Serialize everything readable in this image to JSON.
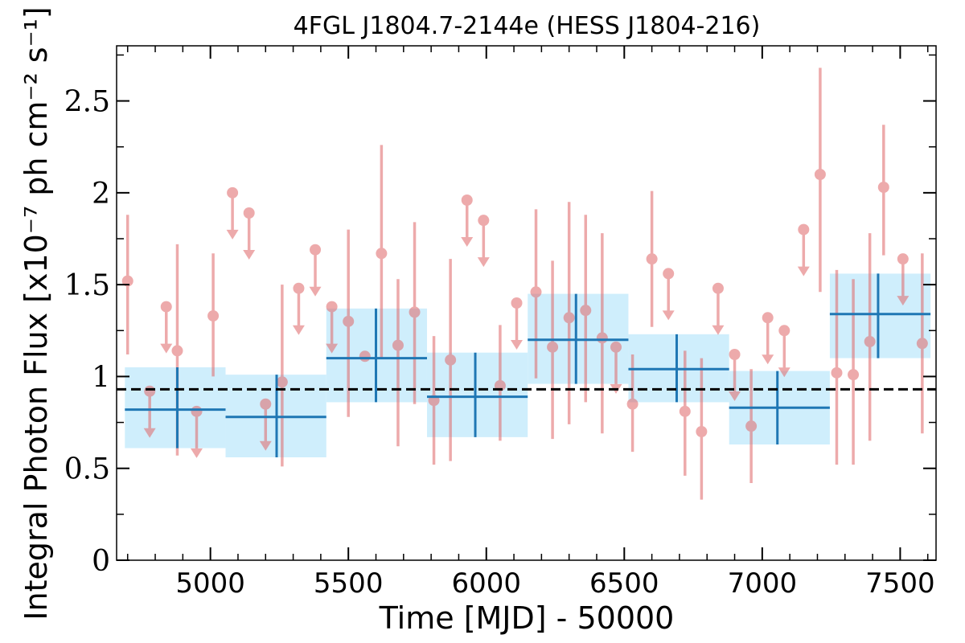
{
  "chart_data": {
    "type": "scatter",
    "title": "4FGL J1804.7-2144e (HESS J1804-216)",
    "xlabel": "Time [MJD] - 50000",
    "ylabel": "Integral Photon Flux [x10⁻⁷ ph cm⁻² s⁻¹]",
    "xlim": [
      4660,
      7630
    ],
    "ylim": [
      0,
      2.8
    ],
    "xticks": [
      5000,
      5500,
      6000,
      6500,
      7000,
      7500
    ],
    "xtick_labels": [
      "5000",
      "5500",
      "6000",
      "6500",
      "7000",
      "7500"
    ],
    "yticks": [
      0,
      0.5,
      1,
      1.5,
      2,
      2.5
    ],
    "ytick_labels": [
      "0",
      "0.5",
      "1",
      "1.5",
      "2",
      "2.5"
    ],
    "grid": false,
    "mean_flux": 0.93,
    "colors": {
      "short_bin": "#e06668",
      "long_bin_line": "#1f77b4",
      "long_bin_band": "#cfeefc",
      "mean_line": "#000000"
    },
    "short_bins": [
      {
        "x": 4700,
        "y": 1.52,
        "ylo": 1.12,
        "yhi": 1.88
      },
      {
        "x": 4880,
        "y": 1.14,
        "ylo": 0.57,
        "yhi": 1.72
      },
      {
        "x": 5010,
        "y": 1.33,
        "ylo": 1.0,
        "yhi": 1.67
      },
      {
        "x": 5260,
        "y": 0.97,
        "ylo": 0.51,
        "yhi": 1.5
      },
      {
        "x": 5500,
        "y": 1.3,
        "ylo": 0.78,
        "yhi": 1.8
      },
      {
        "x": 5560,
        "y": 1.11,
        "ylo": 1.11,
        "yhi": 1.11
      },
      {
        "x": 5620,
        "y": 1.67,
        "ylo": 1.1,
        "yhi": 2.26
      },
      {
        "x": 5680,
        "y": 1.17,
        "ylo": 0.62,
        "yhi": 1.53
      },
      {
        "x": 5740,
        "y": 1.35,
        "ylo": 0.85,
        "yhi": 1.84
      },
      {
        "x": 5810,
        "y": 0.87,
        "ylo": 0.52,
        "yhi": 1.22
      },
      {
        "x": 5870,
        "y": 1.09,
        "ylo": 0.54,
        "yhi": 1.64
      },
      {
        "x": 6050,
        "y": 0.95,
        "ylo": 0.65,
        "yhi": 1.28
      },
      {
        "x": 6180,
        "y": 1.46,
        "ylo": 0.99,
        "yhi": 1.91
      },
      {
        "x": 6240,
        "y": 1.16,
        "ylo": 0.66,
        "yhi": 1.63
      },
      {
        "x": 6300,
        "y": 1.32,
        "ylo": 0.74,
        "yhi": 1.95
      },
      {
        "x": 6360,
        "y": 1.36,
        "ylo": 0.86,
        "yhi": 1.88
      },
      {
        "x": 6420,
        "y": 1.21,
        "ylo": 0.69,
        "yhi": 1.78
      },
      {
        "x": 6530,
        "y": 0.85,
        "ylo": 0.59,
        "yhi": 1.12
      },
      {
        "x": 6600,
        "y": 1.64,
        "ylo": 1.27,
        "yhi": 2.01
      },
      {
        "x": 6720,
        "y": 0.81,
        "ylo": 0.46,
        "yhi": 1.14
      },
      {
        "x": 6780,
        "y": 0.7,
        "ylo": 0.33,
        "yhi": 1.1
      },
      {
        "x": 6960,
        "y": 0.73,
        "ylo": 0.42,
        "yhi": 1.04
      },
      {
        "x": 7210,
        "y": 2.1,
        "ylo": 1.46,
        "yhi": 2.68
      },
      {
        "x": 7270,
        "y": 1.02,
        "ylo": 0.52,
        "yhi": 1.58
      },
      {
        "x": 7330,
        "y": 1.01,
        "ylo": 0.52,
        "yhi": 1.53
      },
      {
        "x": 7390,
        "y": 1.19,
        "ylo": 0.65,
        "yhi": 1.78
      },
      {
        "x": 7440,
        "y": 2.03,
        "ylo": 1.66,
        "yhi": 2.37
      },
      {
        "x": 7580,
        "y": 1.18,
        "ylo": 0.69,
        "yhi": 1.67
      }
    ],
    "short_bin_upper_limits": [
      {
        "x": 4780,
        "y": 0.92
      },
      {
        "x": 4840,
        "y": 1.38
      },
      {
        "x": 4950,
        "y": 0.81
      },
      {
        "x": 5080,
        "y": 2.0
      },
      {
        "x": 5140,
        "y": 1.89
      },
      {
        "x": 5200,
        "y": 0.85
      },
      {
        "x": 5320,
        "y": 1.48
      },
      {
        "x": 5380,
        "y": 1.69
      },
      {
        "x": 5440,
        "y": 1.38
      },
      {
        "x": 5930,
        "y": 1.96
      },
      {
        "x": 5990,
        "y": 1.85
      },
      {
        "x": 6110,
        "y": 1.4
      },
      {
        "x": 6470,
        "y": 1.16
      },
      {
        "x": 6660,
        "y": 1.56
      },
      {
        "x": 6840,
        "y": 1.48
      },
      {
        "x": 6900,
        "y": 1.12
      },
      {
        "x": 7020,
        "y": 1.32
      },
      {
        "x": 7080,
        "y": 1.25
      },
      {
        "x": 7150,
        "y": 1.8
      },
      {
        "x": 7510,
        "y": 1.64
      }
    ],
    "long_bins": [
      {
        "x": 4880,
        "xlo": 4690,
        "xhi": 5055,
        "y": 0.82,
        "ylo": 0.61,
        "yhi": 1.05
      },
      {
        "x": 5240,
        "xlo": 5055,
        "xhi": 5420,
        "y": 0.78,
        "ylo": 0.56,
        "yhi": 1.01
      },
      {
        "x": 5600,
        "xlo": 5420,
        "xhi": 5785,
        "y": 1.1,
        "ylo": 0.86,
        "yhi": 1.37
      },
      {
        "x": 5960,
        "xlo": 5785,
        "xhi": 6150,
        "y": 0.89,
        "ylo": 0.67,
        "yhi": 1.13
      },
      {
        "x": 6325,
        "xlo": 6150,
        "xhi": 6515,
        "y": 1.2,
        "ylo": 0.96,
        "yhi": 1.45
      },
      {
        "x": 6690,
        "xlo": 6515,
        "xhi": 6880,
        "y": 1.04,
        "ylo": 0.86,
        "yhi": 1.23
      },
      {
        "x": 7055,
        "xlo": 6880,
        "xhi": 7245,
        "y": 0.83,
        "ylo": 0.63,
        "yhi": 1.03
      },
      {
        "x": 7420,
        "xlo": 7245,
        "xhi": 7610,
        "y": 1.34,
        "ylo": 1.1,
        "yhi": 1.56
      }
    ]
  }
}
